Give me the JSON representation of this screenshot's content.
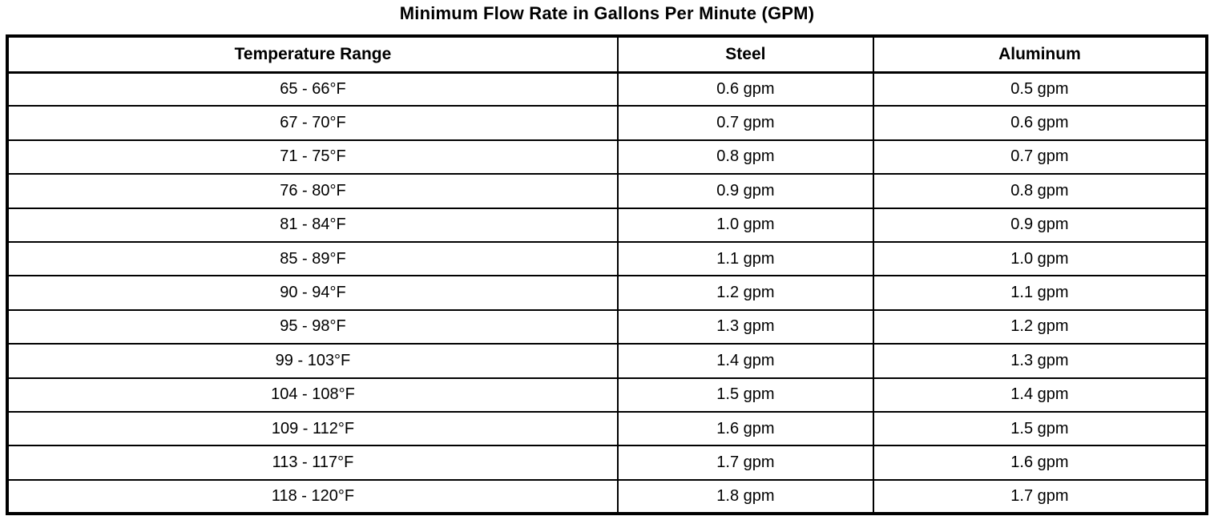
{
  "title": "Minimum Flow Rate in Gallons Per Minute (GPM)",
  "table": {
    "columns": [
      "Temperature Range",
      "Steel",
      "Aluminum"
    ],
    "rows": [
      [
        "65 - 66°F",
        "0.6 gpm",
        "0.5 gpm"
      ],
      [
        "67 - 70°F",
        "0.7 gpm",
        "0.6 gpm"
      ],
      [
        "71 - 75°F",
        "0.8 gpm",
        "0.7 gpm"
      ],
      [
        "76 - 80°F",
        "0.9 gpm",
        "0.8 gpm"
      ],
      [
        "81 - 84°F",
        "1.0 gpm",
        "0.9 gpm"
      ],
      [
        "85 - 89°F",
        "1.1 gpm",
        "1.0 gpm"
      ],
      [
        "90 - 94°F",
        "1.2 gpm",
        "1.1 gpm"
      ],
      [
        "95 - 98°F",
        "1.3 gpm",
        "1.2 gpm"
      ],
      [
        "99 - 103°F",
        "1.4 gpm",
        "1.3 gpm"
      ],
      [
        "104 - 108°F",
        "1.5 gpm",
        "1.4 gpm"
      ],
      [
        "109 - 112°F",
        "1.6 gpm",
        "1.5 gpm"
      ],
      [
        "113 - 117°F",
        "1.7 gpm",
        "1.6 gpm"
      ],
      [
        "118 - 120°F",
        "1.8 gpm",
        "1.7 gpm"
      ]
    ]
  },
  "colors": {
    "border": "#000000",
    "text": "#000000",
    "background": "#ffffff"
  }
}
